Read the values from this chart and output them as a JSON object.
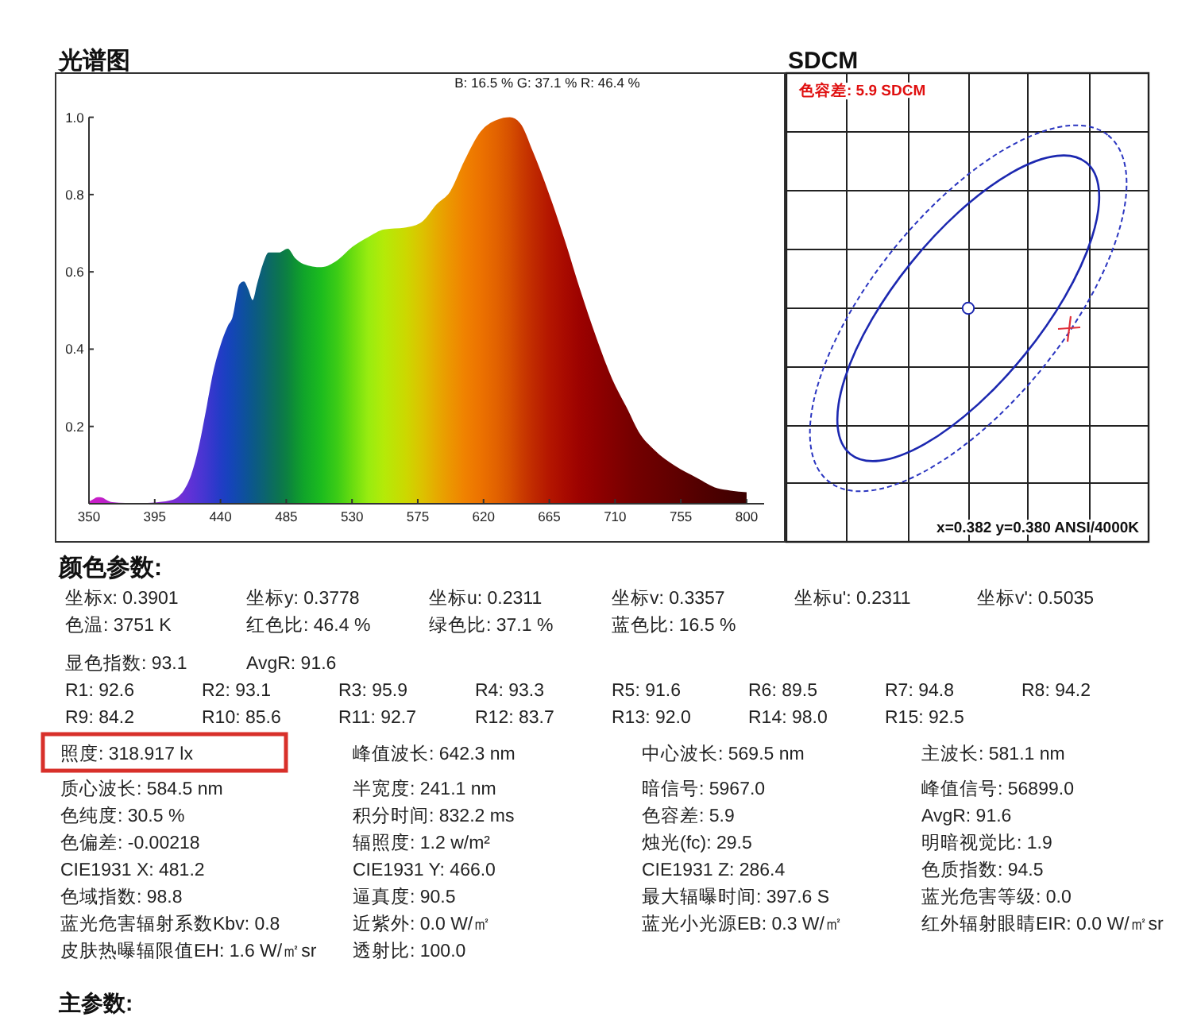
{
  "chart_data": [
    {
      "type": "area",
      "title": "光谱图",
      "subtitle": "B: 16.5 %  G: 37.1 %  R: 46.4 %",
      "x": [
        350,
        353,
        356,
        359,
        362,
        366,
        375,
        390,
        400,
        405,
        410,
        415,
        420,
        425,
        430,
        435,
        440,
        445,
        448,
        453,
        456,
        459,
        462,
        465,
        469,
        473,
        480,
        486,
        491,
        497,
        509,
        520,
        530,
        541,
        552,
        567,
        578,
        588,
        597,
        607,
        618,
        629,
        638,
        645,
        654,
        665,
        676,
        686,
        697,
        708,
        719,
        726,
        737,
        751,
        766,
        780,
        789,
        800
      ],
      "values": [
        0.005,
        0.012,
        0.017,
        0.016,
        0.01,
        0.004,
        0.002,
        0.002,
        0.005,
        0.008,
        0.015,
        0.035,
        0.075,
        0.145,
        0.24,
        0.34,
        0.41,
        0.46,
        0.48,
        0.568,
        0.575,
        0.555,
        0.527,
        0.568,
        0.62,
        0.65,
        0.65,
        0.66,
        0.636,
        0.62,
        0.612,
        0.63,
        0.664,
        0.69,
        0.71,
        0.715,
        0.73,
        0.775,
        0.807,
        0.888,
        0.963,
        0.993,
        1.0,
        0.985,
        0.909,
        0.8,
        0.677,
        0.555,
        0.432,
        0.323,
        0.241,
        0.187,
        0.139,
        0.098,
        0.067,
        0.04,
        0.034,
        0.03
      ],
      "colors": [
        "#c81ec8",
        "#c81ec8",
        "#c81ec8",
        "#c020c8",
        "#b822c8",
        "#b024c8",
        "#a026c8",
        "#9028cc",
        "#862acf",
        "#7e2cd2",
        "#762ed4",
        "#6a30d6",
        "#5e32d6",
        "#5034d4",
        "#4236d0",
        "#3238cc",
        "#223cc6",
        "#1842be",
        "#1446b6",
        "#104ca8",
        "#0e509e",
        "#0c5494",
        "#0c588a",
        "#0c5c80",
        "#0c6274",
        "#0c6866",
        "#0c7450",
        "#0c8240",
        "#0e9234",
        "#10a42a",
        "#1cbc1e",
        "#3ccc16",
        "#68dc10",
        "#98ec10",
        "#b4ea08",
        "#ccd800",
        "#dcc200",
        "#e6aa00",
        "#ec9600",
        "#f08200",
        "#ec7200",
        "#e26200",
        "#d65000",
        "#cc3e00",
        "#c02a00",
        "#b41600",
        "#a80a00",
        "#9c0200",
        "#900000",
        "#840000",
        "#780000",
        "#720000",
        "#6a0000",
        "#600000",
        "#540000",
        "#4a0000",
        "#440000",
        "#3c0000"
      ],
      "xlim": [
        350,
        812
      ],
      "xticks": [
        350,
        395,
        440,
        485,
        530,
        575,
        620,
        665,
        710,
        755,
        800
      ],
      "ylim": [
        0,
        1
      ],
      "yticks": [
        0.2,
        0.4,
        0.6,
        0.8,
        {
          "value": 1,
          "label": "1.0"
        }
      ]
    },
    {
      "type": "other",
      "title": "SDCM",
      "annotations": [
        "色容差: 5.9 SDCM",
        "x=0.382 y=0.380 ANSI/4000K"
      ]
    },
    {
      "type": "other",
      "title": "颜色参数:",
      "annotations": [
        "坐标x: 0.3901",
        "坐标y: 0.3778",
        "坐标u: 0.2311",
        "坐标v: 0.3357",
        "坐标u': 0.2311",
        "坐标v': 0.5035",
        "色温: 3751 K",
        "红色比: 46.4 %",
        "绿色比: 37.1 %",
        "蓝色比: 16.5 %",
        "显色指数: 93.1",
        "AvgR: 91.6",
        "R1: 92.6",
        "R2: 93.1",
        "R3: 95.9",
        "R4: 93.3",
        "R5: 91.6",
        "R6: 89.5",
        "R7: 94.8",
        "R8: 94.2",
        "R9: 84.2",
        "R10: 85.6",
        "R11: 92.7",
        "R12: 83.7",
        "R13: 92.0",
        "R14: 98.0",
        "R15: 92.5",
        "照度: 318.917 lx",
        "峰值波长: 642.3 nm",
        "中心波长: 569.5 nm",
        "主波长: 581.1 nm",
        "质心波长: 584.5 nm",
        "半宽度: 241.1 nm",
        "暗信号: 5967.0",
        "峰值信号: 56899.0",
        "色纯度: 30.5 %",
        "积分时间: 832.2 ms",
        "色容差: 5.9",
        "AvgR: 91.6",
        "色偏差: -0.00218",
        "辐照度: 1.2 w/m²",
        "烛光(fc): 29.5",
        "明暗视觉比: 1.9",
        "CIE1931 X: 481.2",
        "CIE1931 Y: 466.0",
        "CIE1931 Z: 286.4",
        "色质指数: 94.5",
        "色域指数: 98.8",
        "逼真度: 90.5",
        "最大辐曝时间: 397.6 S",
        "蓝光危害等级: 0.0",
        "蓝光危害辐射系数Kbv: 0.8",
        "近紫外: 0.0 W/㎡",
        "蓝光小光源EB: 0.3 W/㎡",
        "红外辐射眼睛EIR: 0.0 W/㎡sr",
        "皮肤热曝辐限值EH: 1.6 W/㎡sr",
        "透射比: 100.0"
      ]
    },
    {
      "type": "other",
      "title": "主参数:"
    }
  ]
}
